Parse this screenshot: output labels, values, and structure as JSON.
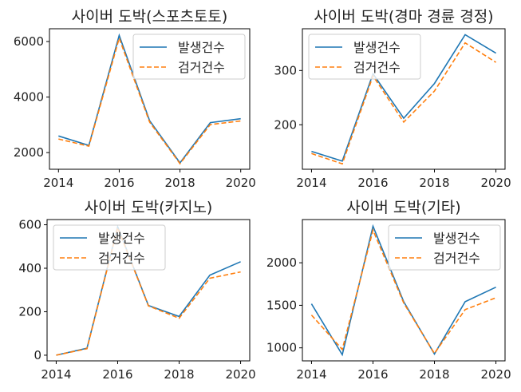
{
  "colors": {
    "series1": "#1f77b4",
    "series2": "#ff7f0e"
  },
  "chart_data": [
    {
      "type": "line",
      "title": "사이버 도박(스포츠토토)",
      "x": [
        2014,
        2015,
        2016,
        2017,
        2018,
        2019,
        2020
      ],
      "xticks": [
        "2014",
        "2016",
        "2018",
        "2020"
      ],
      "yticks": [
        "2000",
        "4000",
        "6000"
      ],
      "ylim": [
        1400,
        6460
      ],
      "legend": "top-right",
      "grid": false,
      "series": [
        {
          "name": "발생건수",
          "style": "solid",
          "values": [
            2600,
            2260,
            6220,
            3150,
            1630,
            3080,
            3220
          ]
        },
        {
          "name": "검거건수",
          "style": "dashed",
          "values": [
            2490,
            2230,
            6120,
            3100,
            1600,
            3010,
            3140
          ]
        }
      ]
    },
    {
      "type": "line",
      "title": "사이버 도박(경마 경륜 경정)",
      "x": [
        2014,
        2015,
        2016,
        2017,
        2018,
        2019,
        2020
      ],
      "xticks": [
        "2014",
        "2016",
        "2018",
        "2020"
      ],
      "yticks": [
        "200",
        "300"
      ],
      "ylim": [
        118,
        377
      ],
      "legend": "top-left",
      "grid": false,
      "series": [
        {
          "name": "발생건수",
          "style": "solid",
          "values": [
            151,
            133,
            294,
            212,
            276,
            366,
            332
          ]
        },
        {
          "name": "검거건수",
          "style": "dashed",
          "values": [
            147,
            128,
            290,
            205,
            262,
            351,
            315
          ]
        }
      ]
    },
    {
      "type": "line",
      "title": "사이버 도박(카지노)",
      "x": [
        2014,
        2015,
        2016,
        2017,
        2018,
        2019,
        2020
      ],
      "xticks": [
        "2014",
        "2016",
        "2018",
        "2020"
      ],
      "yticks": [
        "0",
        "200",
        "400",
        "600"
      ],
      "ylim": [
        -26,
        624
      ],
      "legend": "top-left",
      "grid": false,
      "series": [
        {
          "name": "발생건수",
          "style": "solid",
          "values": [
            0,
            32,
            591,
            229,
            178,
            368,
            430
          ]
        },
        {
          "name": "검거건수",
          "style": "dashed",
          "values": [
            0,
            30,
            586,
            227,
            170,
            354,
            383
          ]
        }
      ]
    },
    {
      "type": "line",
      "title": "사이버 도박(기타)",
      "x": [
        2014,
        2015,
        2016,
        2017,
        2018,
        2019,
        2020
      ],
      "xticks": [
        "2014",
        "2016",
        "2018",
        "2020"
      ],
      "yticks": [
        "1000",
        "1500",
        "2000"
      ],
      "ylim": [
        847,
        2508
      ],
      "legend": "top-right",
      "grid": false,
      "series": [
        {
          "name": "발생건수",
          "style": "solid",
          "values": [
            1517,
            919,
            2430,
            1542,
            928,
            1542,
            1713
          ]
        },
        {
          "name": "검거건수",
          "style": "dashed",
          "values": [
            1386,
            981,
            2383,
            1527,
            934,
            1449,
            1589
          ]
        }
      ]
    }
  ]
}
